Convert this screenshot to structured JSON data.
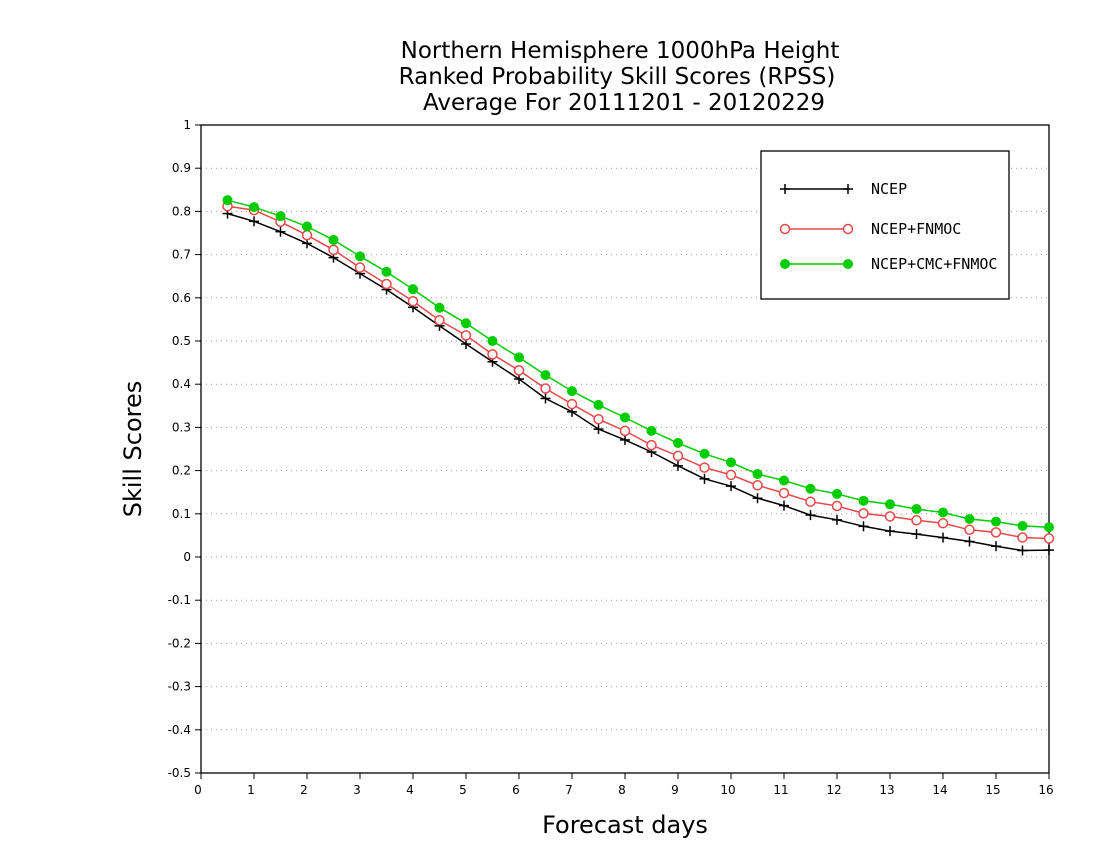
{
  "chart_data": {
    "type": "line",
    "title_lines": [
      "Northern Hemisphere 1000hPa Height",
      "Ranked Probability Skill Scores (RPSS)",
      "Average For 20111201 - 20120229"
    ],
    "xlabel": "Forecast days",
    "ylabel": "Skill Scores",
    "xlim": [
      0,
      16
    ],
    "ylim": [
      -0.5,
      1
    ],
    "x_ticks": [
      "0",
      "1",
      "2",
      "3",
      "4",
      "5",
      "6",
      "7",
      "8",
      "9",
      "10",
      "11",
      "12",
      "13",
      "14",
      "15",
      "16"
    ],
    "y_ticks": [
      "1",
      "0.9",
      "0.8",
      "0.7",
      "0.6",
      "0.5",
      "0.4",
      "0.3",
      "0.2",
      "0.1",
      "0",
      "-0.1",
      "-0.2",
      "-0.3",
      "-0.4",
      "-0.5"
    ],
    "grid": "horizontal dotted",
    "legend_position": "top-right",
    "x": [
      0.5,
      1,
      1.5,
      2,
      2.5,
      3,
      3.5,
      4,
      4.5,
      5,
      5.5,
      6,
      6.5,
      7,
      7.5,
      8,
      8.5,
      9,
      9.5,
      10,
      10.5,
      11,
      11.5,
      12,
      12.5,
      13,
      13.5,
      14,
      14.5,
      15,
      15.5,
      16
    ],
    "series": [
      {
        "name": "NCEP",
        "color": "#000000",
        "marker": "plus",
        "values": [
          0.795,
          0.777,
          0.753,
          0.726,
          0.693,
          0.656,
          0.619,
          0.578,
          0.535,
          0.493,
          0.452,
          0.412,
          0.367,
          0.336,
          0.296,
          0.271,
          0.243,
          0.211,
          0.181,
          0.164,
          0.136,
          0.119,
          0.097,
          0.086,
          0.071,
          0.06,
          0.053,
          0.045,
          0.036,
          0.025,
          0.015,
          0.016
        ]
      },
      {
        "name": "NCEP+FNMOC",
        "color": "#e84848",
        "marker": "open-circle",
        "values": [
          0.812,
          0.803,
          0.776,
          0.745,
          0.711,
          0.67,
          0.632,
          0.592,
          0.548,
          0.513,
          0.469,
          0.432,
          0.39,
          0.354,
          0.319,
          0.292,
          0.259,
          0.234,
          0.207,
          0.19,
          0.166,
          0.148,
          0.128,
          0.118,
          0.101,
          0.094,
          0.085,
          0.078,
          0.063,
          0.057,
          0.045,
          0.043
        ]
      },
      {
        "name": "NCEP+CMC+FNMOC",
        "color": "#00cc00",
        "marker": "filled-circle",
        "values": [
          0.826,
          0.81,
          0.789,
          0.765,
          0.734,
          0.696,
          0.66,
          0.62,
          0.577,
          0.541,
          0.5,
          0.462,
          0.421,
          0.384,
          0.352,
          0.323,
          0.292,
          0.264,
          0.239,
          0.219,
          0.192,
          0.177,
          0.158,
          0.146,
          0.13,
          0.122,
          0.111,
          0.103,
          0.088,
          0.082,
          0.072,
          0.069
        ]
      }
    ]
  }
}
